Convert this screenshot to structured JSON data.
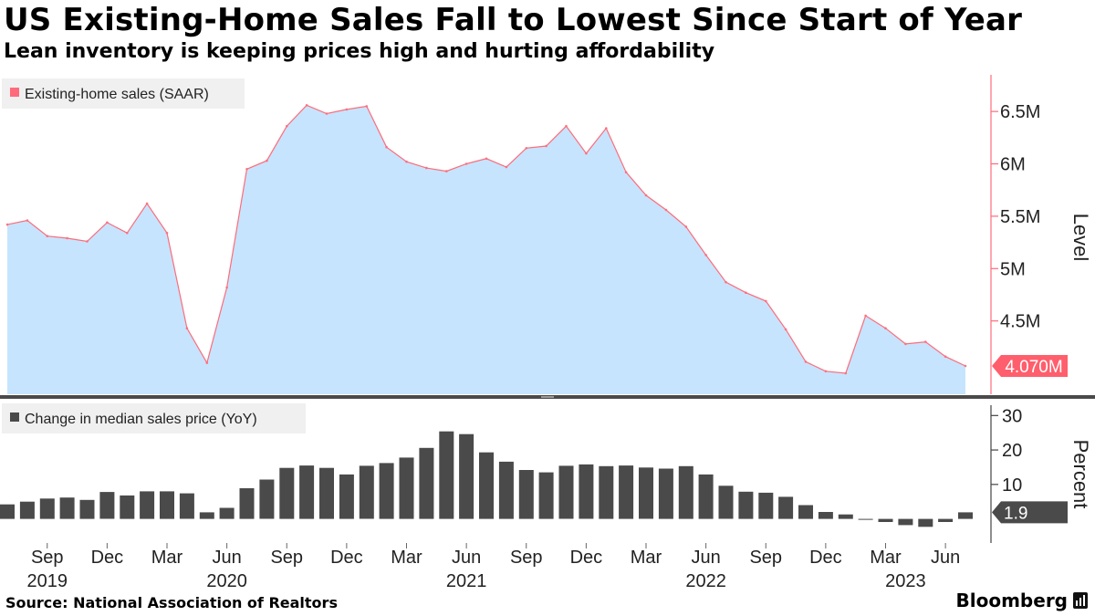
{
  "title": "US Existing-Home Sales Fall to Lowest Since Start of Year",
  "subtitle": "Lean inventory is keeping prices high and hurting affordability",
  "source": "Source: National Association of Realtors",
  "brand": "Bloomberg",
  "colors": {
    "sales_line": "#ff6b7a",
    "sales_fill": "#c6e4fd",
    "price_bar": "#4a4a4a",
    "axis_top": "#ff6b7a",
    "axis_bottom": "#444444",
    "callout_top": "#ff5e6c",
    "callout_bottom": "#4a4a4a",
    "panel_divider": "#4a4a4a"
  },
  "chart_data": [
    {
      "type": "area",
      "title": "Existing-home sales (SAAR)",
      "legend": "Existing-home sales (SAAR)",
      "legend_position": "top-left",
      "ylabel": "Level",
      "ylim": [
        3.8,
        6.85
      ],
      "yticks": [
        4.5,
        5,
        5.5,
        6,
        6.5
      ],
      "ytick_labels": [
        "4.5M",
        "5M",
        "5.5M",
        "6M",
        "6.5M"
      ],
      "last_value_label": "4.070M",
      "x": [
        "2019-07",
        "2019-08",
        "2019-09",
        "2019-10",
        "2019-11",
        "2019-12",
        "2020-01",
        "2020-02",
        "2020-03",
        "2020-04",
        "2020-05",
        "2020-06",
        "2020-07",
        "2020-08",
        "2020-09",
        "2020-10",
        "2020-11",
        "2020-12",
        "2021-01",
        "2021-02",
        "2021-03",
        "2021-04",
        "2021-05",
        "2021-06",
        "2021-07",
        "2021-08",
        "2021-09",
        "2021-10",
        "2021-11",
        "2021-12",
        "2022-01",
        "2022-02",
        "2022-03",
        "2022-04",
        "2022-05",
        "2022-06",
        "2022-07",
        "2022-08",
        "2022-09",
        "2022-10",
        "2022-11",
        "2022-12",
        "2023-01",
        "2023-02",
        "2023-03",
        "2023-04",
        "2023-05",
        "2023-06",
        "2023-07"
      ],
      "values": [
        5.42,
        5.46,
        5.31,
        5.29,
        5.26,
        5.44,
        5.34,
        5.62,
        5.34,
        4.43,
        4.1,
        4.82,
        5.95,
        6.03,
        6.36,
        6.56,
        6.48,
        6.52,
        6.55,
        6.16,
        6.02,
        5.96,
        5.93,
        6.0,
        6.05,
        5.97,
        6.15,
        6.17,
        6.36,
        6.1,
        6.34,
        5.92,
        5.7,
        5.56,
        5.4,
        5.13,
        4.87,
        4.77,
        4.69,
        4.42,
        4.11,
        4.02,
        4.0,
        4.55,
        4.43,
        4.28,
        4.3,
        4.16,
        4.07
      ]
    },
    {
      "type": "bar",
      "title": "Change in median sales price (YoY)",
      "legend": "Change in median sales price (YoY)",
      "legend_position": "top-left",
      "ylabel": "Percent",
      "ylim": [
        -7,
        33
      ],
      "yticks": [
        10,
        20,
        30
      ],
      "ytick_labels": [
        "10",
        "20",
        "30"
      ],
      "last_value_label": "1.9",
      "x": [
        "2019-07",
        "2019-08",
        "2019-09",
        "2019-10",
        "2019-11",
        "2019-12",
        "2020-01",
        "2020-02",
        "2020-03",
        "2020-04",
        "2020-05",
        "2020-06",
        "2020-07",
        "2020-08",
        "2020-09",
        "2020-10",
        "2020-11",
        "2020-12",
        "2021-01",
        "2021-02",
        "2021-03",
        "2021-04",
        "2021-05",
        "2021-06",
        "2021-07",
        "2021-08",
        "2021-09",
        "2021-10",
        "2021-11",
        "2021-12",
        "2022-01",
        "2022-02",
        "2022-03",
        "2022-04",
        "2022-05",
        "2022-06",
        "2022-07",
        "2022-08",
        "2022-09",
        "2022-10",
        "2022-11",
        "2022-12",
        "2023-01",
        "2023-02",
        "2023-03",
        "2023-04",
        "2023-05",
        "2023-06",
        "2023-07"
      ],
      "values": [
        4.2,
        5.0,
        5.9,
        6.2,
        5.5,
        7.8,
        6.8,
        8.0,
        8.0,
        7.4,
        1.9,
        3.2,
        8.9,
        11.4,
        14.8,
        15.5,
        14.8,
        12.9,
        15.4,
        16.2,
        17.8,
        20.6,
        25.4,
        24.6,
        19.3,
        16.6,
        14.2,
        13.5,
        15.4,
        15.8,
        15.3,
        15.5,
        14.9,
        14.6,
        15.3,
        12.9,
        9.6,
        7.9,
        7.6,
        6.4,
        4.0,
        2.0,
        1.3,
        -0.2,
        -0.9,
        -1.8,
        -2.3,
        -0.9,
        1.9
      ]
    }
  ],
  "x_axis": {
    "tick_labels": [
      {
        "label": "Sep",
        "month": "2019-09"
      },
      {
        "label": "Dec",
        "month": "2019-12"
      },
      {
        "label": "Mar",
        "month": "2020-03"
      },
      {
        "label": "Jun",
        "month": "2020-06"
      },
      {
        "label": "Sep",
        "month": "2020-09"
      },
      {
        "label": "Dec",
        "month": "2020-12"
      },
      {
        "label": "Mar",
        "month": "2021-03"
      },
      {
        "label": "Jun",
        "month": "2021-06"
      },
      {
        "label": "Sep",
        "month": "2021-09"
      },
      {
        "label": "Dec",
        "month": "2021-12"
      },
      {
        "label": "Mar",
        "month": "2022-03"
      },
      {
        "label": "Jun",
        "month": "2022-06"
      },
      {
        "label": "Sep",
        "month": "2022-09"
      },
      {
        "label": "Dec",
        "month": "2022-12"
      },
      {
        "label": "Mar",
        "month": "2023-03"
      },
      {
        "label": "Jun",
        "month": "2023-06"
      }
    ],
    "year_labels": [
      {
        "label": "2019",
        "month": "2019-09"
      },
      {
        "label": "2020",
        "month": "2020-06"
      },
      {
        "label": "2021",
        "month": "2021-06"
      },
      {
        "label": "2022",
        "month": "2022-06"
      },
      {
        "label": "2023",
        "month": "2023-04"
      }
    ]
  }
}
